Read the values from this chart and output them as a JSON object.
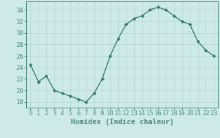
{
  "x": [
    0,
    1,
    2,
    3,
    4,
    5,
    6,
    7,
    8,
    9,
    10,
    11,
    12,
    13,
    14,
    15,
    16,
    17,
    18,
    19,
    20,
    21,
    22,
    23
  ],
  "y": [
    24.5,
    21.5,
    22.5,
    20.0,
    19.5,
    19.0,
    18.5,
    18.0,
    19.5,
    22.0,
    26.0,
    29.0,
    31.5,
    32.5,
    33.0,
    34.0,
    34.5,
    34.0,
    33.0,
    32.0,
    31.5,
    28.5,
    27.0,
    26.0
  ],
  "line_color": "#2e7d6e",
  "marker": "D",
  "marker_size": 2.2,
  "bg_color": "#ceeae8",
  "grid_color": "#b8d8d5",
  "xlabel": "Humidex (Indice chaleur)",
  "ylim": [
    17,
    35.5
  ],
  "xlim": [
    -0.5,
    23.5
  ],
  "yticks": [
    18,
    20,
    22,
    24,
    26,
    28,
    30,
    32,
    34
  ],
  "xticks": [
    0,
    1,
    2,
    3,
    4,
    5,
    6,
    7,
    8,
    9,
    10,
    11,
    12,
    13,
    14,
    15,
    16,
    17,
    18,
    19,
    20,
    21,
    22,
    23
  ],
  "tick_label_fontsize": 6.5,
  "xlabel_fontsize": 7.5,
  "linewidth": 1.0,
  "spine_color": "#4a8a80"
}
